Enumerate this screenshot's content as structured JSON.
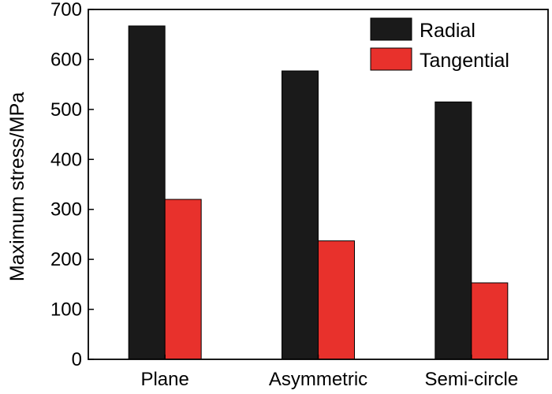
{
  "chart_data": {
    "type": "bar",
    "categories": [
      "Plane",
      "Asymmetric",
      "Semi-circle"
    ],
    "series": [
      {
        "name": "Radial",
        "values": [
          667,
          577,
          515
        ],
        "color": "#1a1a1a"
      },
      {
        "name": "Tangential",
        "values": [
          320,
          237,
          153
        ],
        "color": "#e8312c"
      }
    ],
    "ylabel": "Maximum stress/MPa",
    "xlabel": "",
    "ylim": [
      0,
      700
    ],
    "yticks": [
      0,
      100,
      200,
      300,
      400,
      500,
      600,
      700
    ],
    "grid": false,
    "legend_position": "top-right"
  }
}
